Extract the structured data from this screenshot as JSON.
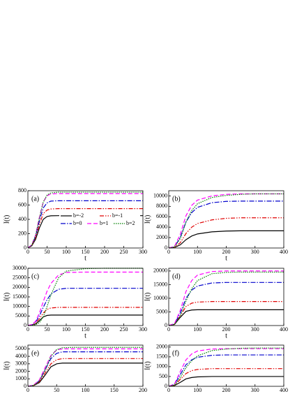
{
  "chart_data": [
    {
      "type": "line",
      "label": "(a)",
      "xlabel": "t",
      "ylabel": "I(t)",
      "legend": true,
      "x": [
        0,
        10,
        20,
        30,
        40,
        50,
        60,
        80,
        100,
        150,
        200,
        250,
        300
      ],
      "xlim": [
        0,
        300
      ],
      "xticks": [
        0,
        50,
        100,
        150,
        200,
        250,
        300
      ],
      "ylim": [
        0,
        800
      ],
      "yticks": [
        0,
        200,
        400,
        600,
        800
      ],
      "series": [
        {
          "name": "b=-2",
          "color": "#000000",
          "dash": "none",
          "values": [
            0,
            30,
            120,
            280,
            400,
            440,
            450,
            452,
            452,
            452,
            452,
            452,
            452
          ]
        },
        {
          "name": "b=-1",
          "color": "#e00000",
          "dash": "6 2 1.5 2 1.5 2",
          "values": [
            0,
            35,
            140,
            330,
            480,
            530,
            545,
            550,
            550,
            550,
            550,
            550,
            550
          ]
        },
        {
          "name": "b=0",
          "color": "#0000cc",
          "dash": "7 2 1.5 2",
          "values": [
            0,
            40,
            160,
            380,
            560,
            630,
            655,
            660,
            660,
            660,
            660,
            660,
            660
          ]
        },
        {
          "name": "b=1",
          "color": "#ff00ff",
          "dash": "6 3",
          "values": [
            0,
            45,
            180,
            430,
            640,
            730,
            755,
            760,
            760,
            760,
            760,
            760,
            760
          ]
        },
        {
          "name": "b=2",
          "color": "#008000",
          "dash": "1.5 1.5",
          "values": [
            0,
            40,
            170,
            420,
            640,
            740,
            770,
            780,
            780,
            780,
            780,
            780,
            780
          ]
        }
      ]
    },
    {
      "type": "line",
      "label": "(b)",
      "xlabel": "t",
      "ylabel": "I(t)",
      "x": [
        0,
        20,
        40,
        60,
        80,
        100,
        150,
        200,
        250,
        300,
        350,
        400
      ],
      "xlim": [
        0,
        400
      ],
      "xticks": [
        0,
        100,
        200,
        300,
        400
      ],
      "ylim": [
        0,
        11000
      ],
      "yticks": [
        0,
        2000,
        4000,
        6000,
        8000,
        10000
      ],
      "series": [
        {
          "color": "#000000",
          "dash": "none",
          "values": [
            0,
            100,
            600,
            1600,
            2300,
            2700,
            3100,
            3250,
            3300,
            3300,
            3300,
            3300
          ]
        },
        {
          "color": "#e00000",
          "dash": "6 2 1.5 2 1.5 2",
          "values": [
            0,
            150,
            1000,
            2800,
            4000,
            4700,
            5400,
            5700,
            5800,
            5800,
            5800,
            5800
          ]
        },
        {
          "color": "#0000cc",
          "dash": "7 2 1.5 2",
          "values": [
            0,
            250,
            2000,
            5000,
            6800,
            7800,
            8700,
            8950,
            9000,
            9000,
            9000,
            9000
          ]
        },
        {
          "color": "#ff00ff",
          "dash": "6 3",
          "values": [
            0,
            300,
            2600,
            6200,
            8200,
            9200,
            10000,
            10300,
            10400,
            10400,
            10400,
            10400
          ]
        },
        {
          "color": "#008000",
          "dash": "1.5 1.5",
          "values": [
            0,
            200,
            1800,
            5000,
            7200,
            8500,
            9700,
            10100,
            10300,
            10400,
            10400,
            10400
          ]
        }
      ]
    },
    {
      "type": "line",
      "label": "(c)",
      "xlabel": "t",
      "ylabel": "I(t)",
      "x": [
        0,
        10,
        20,
        30,
        40,
        50,
        60,
        80,
        100,
        150,
        200,
        250,
        300
      ],
      "xlim": [
        0,
        300
      ],
      "xticks": [
        0,
        50,
        100,
        150,
        200,
        250,
        300
      ],
      "ylim": [
        0,
        30000
      ],
      "yticks": [
        0,
        5000,
        10000,
        15000,
        20000,
        25000,
        30000
      ],
      "series": [
        {
          "color": "#000000",
          "dash": "none",
          "values": [
            0,
            200,
            800,
            2500,
            4500,
            5300,
            5500,
            5500,
            5500,
            5500,
            5500,
            5500,
            5500
          ]
        },
        {
          "color": "#e00000",
          "dash": "6 2 1.5 2 1.5 2",
          "values": [
            0,
            300,
            1200,
            3500,
            6500,
            8500,
            9200,
            9500,
            9500,
            9500,
            9500,
            9500,
            9500
          ]
        },
        {
          "color": "#0000cc",
          "dash": "7 2 1.5 2",
          "values": [
            0,
            400,
            1800,
            5000,
            9500,
            13500,
            16500,
            19000,
            19500,
            19500,
            19500,
            19500,
            19500
          ]
        },
        {
          "color": "#ff00ff",
          "dash": "6 3",
          "values": [
            0,
            500,
            2200,
            6500,
            12500,
            18000,
            22000,
            26500,
            27800,
            28000,
            28000,
            28000,
            28000
          ]
        },
        {
          "color": "#008000",
          "dash": "1.5 1.5",
          "values": [
            0,
            100,
            400,
            1500,
            4500,
            10000,
            16000,
            25000,
            28500,
            29800,
            30000,
            30000,
            30000
          ]
        }
      ]
    },
    {
      "type": "line",
      "label": "(d)",
      "xlabel": "t",
      "ylabel": "I(t)",
      "x": [
        0,
        20,
        40,
        60,
        80,
        100,
        150,
        200,
        250,
        300,
        350,
        400
      ],
      "xlim": [
        0,
        400
      ],
      "xticks": [
        0,
        100,
        200,
        300,
        400
      ],
      "ylim": [
        0,
        21000
      ],
      "yticks": [
        0,
        5000,
        10000,
        15000,
        20000
      ],
      "series": [
        {
          "color": "#000000",
          "dash": "none",
          "values": [
            0,
            400,
            3000,
            5200,
            5700,
            5800,
            5800,
            5800,
            5800,
            5800,
            5800,
            5800
          ]
        },
        {
          "color": "#e00000",
          "dash": "6 2 1.5 2 1.5 2",
          "values": [
            0,
            500,
            3500,
            7000,
            8200,
            8600,
            8800,
            8800,
            8800,
            8800,
            8800,
            8800
          ]
        },
        {
          "color": "#0000cc",
          "dash": "7 2 1.5 2",
          "values": [
            0,
            600,
            4500,
            10000,
            13000,
            14500,
            15600,
            15800,
            15800,
            15800,
            15800,
            15800
          ]
        },
        {
          "color": "#ff00ff",
          "dash": "6 3",
          "values": [
            0,
            700,
            5500,
            12500,
            16500,
            18500,
            19800,
            20000,
            20000,
            20000,
            20000,
            20000
          ]
        },
        {
          "color": "#008000",
          "dash": "1.5 1.5",
          "values": [
            0,
            400,
            3500,
            9000,
            13500,
            16500,
            19000,
            19500,
            19600,
            19600,
            19600,
            19600
          ]
        }
      ]
    },
    {
      "type": "line",
      "label": "(e)",
      "xlabel": "t",
      "ylabel": "I(t)",
      "x": [
        0,
        10,
        20,
        30,
        40,
        50,
        60,
        80,
        100,
        150,
        200
      ],
      "xlim": [
        0,
        200
      ],
      "xticks": [
        0,
        50,
        100,
        150,
        200
      ],
      "ylim": [
        0,
        5500
      ],
      "yticks": [
        0,
        1000,
        2000,
        3000,
        4000,
        5000
      ],
      "series": [
        {
          "color": "#000000",
          "dash": "none",
          "values": [
            0,
            100,
            500,
            1500,
            2600,
            3000,
            3100,
            3100,
            3100,
            3100,
            3100
          ]
        },
        {
          "color": "#e00000",
          "dash": "6 2 1.5 2 1.5 2",
          "values": [
            0,
            120,
            600,
            1800,
            3000,
            3550,
            3700,
            3700,
            3700,
            3700,
            3700
          ]
        },
        {
          "color": "#0000cc",
          "dash": "7 2 1.5 2",
          "values": [
            0,
            150,
            750,
            2200,
            3700,
            4400,
            4600,
            4600,
            4600,
            4600,
            4600
          ]
        },
        {
          "color": "#ff00ff",
          "dash": "6 3",
          "values": [
            0,
            170,
            850,
            2500,
            4100,
            4850,
            5000,
            5000,
            5000,
            5000,
            5000
          ]
        },
        {
          "color": "#008000",
          "dash": "1.5 1.5",
          "values": [
            0,
            120,
            700,
            2200,
            4000,
            4900,
            5150,
            5200,
            5200,
            5200,
            5200
          ]
        }
      ]
    },
    {
      "type": "line",
      "label": "(f)",
      "xlabel": "t",
      "ylabel": "I(t)",
      "x": [
        0,
        20,
        40,
        60,
        80,
        100,
        150,
        200,
        250,
        300,
        350,
        400
      ],
      "xlim": [
        0,
        400
      ],
      "xticks": [
        0,
        100,
        200,
        300,
        400
      ],
      "ylim": [
        0,
        2100
      ],
      "yticks": [
        0,
        500,
        1000,
        1500,
        2000
      ],
      "series": [
        {
          "color": "#000000",
          "dash": "none",
          "values": [
            0,
            40,
            200,
            380,
            450,
            480,
            500,
            500,
            500,
            500,
            500,
            500
          ]
        },
        {
          "color": "#e00000",
          "dash": "6 2 1.5 2 1.5 2",
          "values": [
            0,
            60,
            350,
            650,
            800,
            860,
            900,
            900,
            900,
            900,
            900,
            900
          ]
        },
        {
          "color": "#0000cc",
          "dash": "7 2 1.5 2",
          "values": [
            0,
            100,
            600,
            1100,
            1350,
            1480,
            1580,
            1600,
            1600,
            1600,
            1600,
            1600
          ]
        },
        {
          "color": "#ff00ff",
          "dash": "6 3",
          "values": [
            0,
            120,
            750,
            1350,
            1650,
            1800,
            1900,
            1920,
            1920,
            1920,
            1920,
            1920
          ]
        },
        {
          "color": "#008000",
          "dash": "1.5 1.5",
          "values": [
            0,
            60,
            450,
            950,
            1300,
            1550,
            1820,
            1900,
            1940,
            1950,
            1950,
            1950
          ]
        }
      ]
    }
  ]
}
